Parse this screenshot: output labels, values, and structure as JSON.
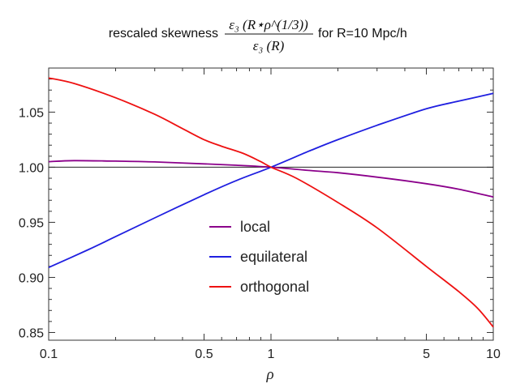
{
  "chart_data": {
    "type": "line",
    "title_prefix": "rescaled skewness",
    "title_numerator": "ε₃ (R⋆ρ^(1/3))",
    "title_denominator": "ε₃ (R)",
    "title_suffix": "for R=10 Mpc/h",
    "xlabel": "ρ",
    "xscale": "log",
    "xlim": [
      0.1,
      10
    ],
    "ylim": [
      0.843,
      1.09
    ],
    "x_ticks": [
      {
        "value": 0.1,
        "label": "0.1"
      },
      {
        "value": 0.5,
        "label": "0.5"
      },
      {
        "value": 1,
        "label": "1"
      },
      {
        "value": 5,
        "label": "5"
      },
      {
        "value": 10,
        "label": "10"
      }
    ],
    "y_ticks": [
      {
        "value": 0.85,
        "label": "0.85"
      },
      {
        "value": 0.9,
        "label": "0.90"
      },
      {
        "value": 0.95,
        "label": "0.95"
      },
      {
        "value": 1.0,
        "label": "1.00"
      },
      {
        "value": 1.05,
        "label": "1.05"
      }
    ],
    "reference_line": 1.0,
    "legend_position": "center",
    "series": [
      {
        "name": "local",
        "color": "#8b008b",
        "x": [
          0.1,
          0.13,
          0.2,
          0.3,
          0.5,
          0.7,
          1,
          1.5,
          2,
          3,
          5,
          7,
          10
        ],
        "y": [
          1.005,
          1.006,
          1.0055,
          1.0048,
          1.003,
          1.0018,
          1.0,
          0.997,
          0.995,
          0.991,
          0.985,
          0.98,
          0.973
        ]
      },
      {
        "name": "equilateral",
        "color": "#1f1fe0",
        "x": [
          0.1,
          0.15,
          0.2,
          0.3,
          0.5,
          0.7,
          1,
          1.5,
          2,
          3,
          5,
          7,
          10
        ],
        "y": [
          0.909,
          0.925,
          0.937,
          0.954,
          0.975,
          0.988,
          1.0,
          1.015,
          1.025,
          1.038,
          1.053,
          1.06,
          1.067
        ]
      },
      {
        "name": "orthogonal",
        "color": "#ee1111",
        "x": [
          0.1,
          0.13,
          0.2,
          0.3,
          0.4,
          0.5,
          0.6,
          0.75,
          0.9,
          1,
          1.3,
          2,
          3,
          5,
          7,
          8.5,
          10
        ],
        "y": [
          1.081,
          1.076,
          1.063,
          1.048,
          1.035,
          1.025,
          1.019,
          1.0125,
          1.005,
          1.0,
          0.99,
          0.968,
          0.945,
          0.91,
          0.887,
          0.872,
          0.855
        ]
      }
    ]
  }
}
